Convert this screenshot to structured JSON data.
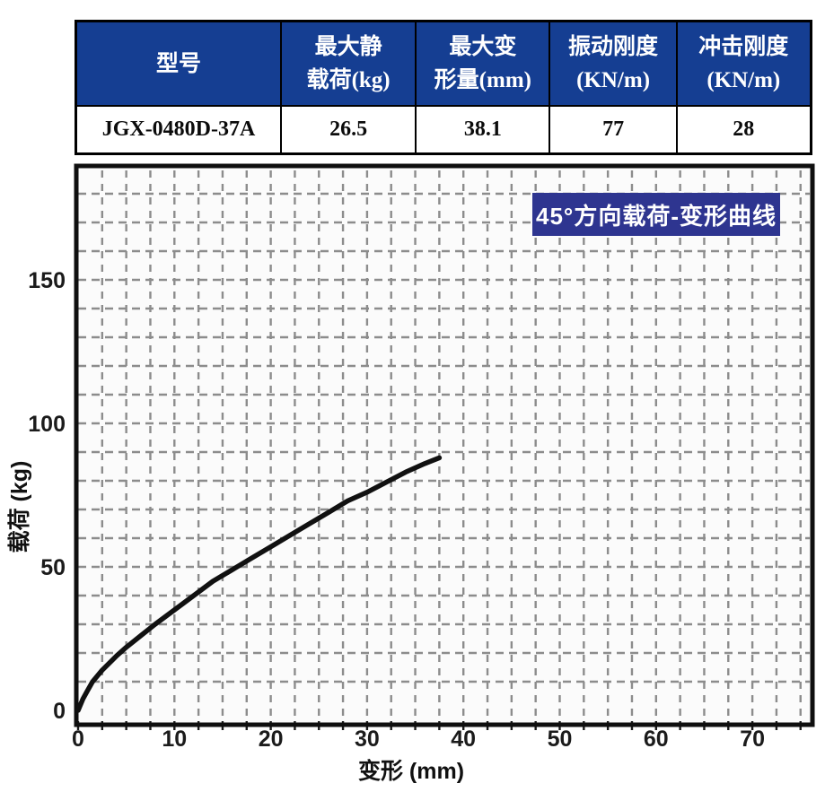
{
  "table": {
    "header_bg": "#153e92",
    "border_color": "#000000",
    "columns": [
      {
        "line1": "型号",
        "line2": ""
      },
      {
        "line1": "最大静",
        "line2": "载荷(kg)"
      },
      {
        "line1": "最大变",
        "line2": "形量(mm)"
      },
      {
        "line1": "振动刚度",
        "line2": "(KN/m)"
      },
      {
        "line1": "冲击刚度",
        "line2": "(KN/m)"
      }
    ],
    "row": [
      "JGX-0480D-37A",
      "26.5",
      "38.1",
      "77",
      "28"
    ]
  },
  "chart": {
    "badge": "45°方向载荷-变形曲线",
    "badge_bg": "#2e3590",
    "grid_color": "#8c8c8c",
    "curve_color": "#111111"
  },
  "chart_data": {
    "type": "line",
    "title": "45°方向载荷-变形曲线",
    "xlabel": "变形 (mm)",
    "ylabel": "载荷 (kg)",
    "xlim": [
      0,
      76
    ],
    "ylim": [
      0,
      190
    ],
    "x_ticks": [
      0,
      10,
      20,
      30,
      40,
      50,
      60,
      70
    ],
    "y_ticks": [
      0,
      50,
      100,
      150
    ],
    "x_minor_step": 2.5,
    "y_minor_step": 10,
    "grid": "dashed",
    "legend_position": "none",
    "series": [
      {
        "name": "45°方向载荷-变形曲线",
        "points": [
          [
            0,
            0
          ],
          [
            0.5,
            4
          ],
          [
            1,
            7
          ],
          [
            1.5,
            10
          ],
          [
            2.5,
            14
          ],
          [
            4,
            19
          ],
          [
            5,
            22
          ],
          [
            6.5,
            26
          ],
          [
            8,
            30
          ],
          [
            10,
            35
          ],
          [
            12,
            40
          ],
          [
            14,
            45
          ],
          [
            16,
            49
          ],
          [
            18,
            53
          ],
          [
            20,
            57
          ],
          [
            22,
            61
          ],
          [
            24,
            65
          ],
          [
            26,
            69
          ],
          [
            28,
            73
          ],
          [
            30,
            76
          ],
          [
            32,
            79.5
          ],
          [
            34,
            83
          ],
          [
            36,
            86
          ],
          [
            37.5,
            88
          ]
        ]
      }
    ]
  }
}
